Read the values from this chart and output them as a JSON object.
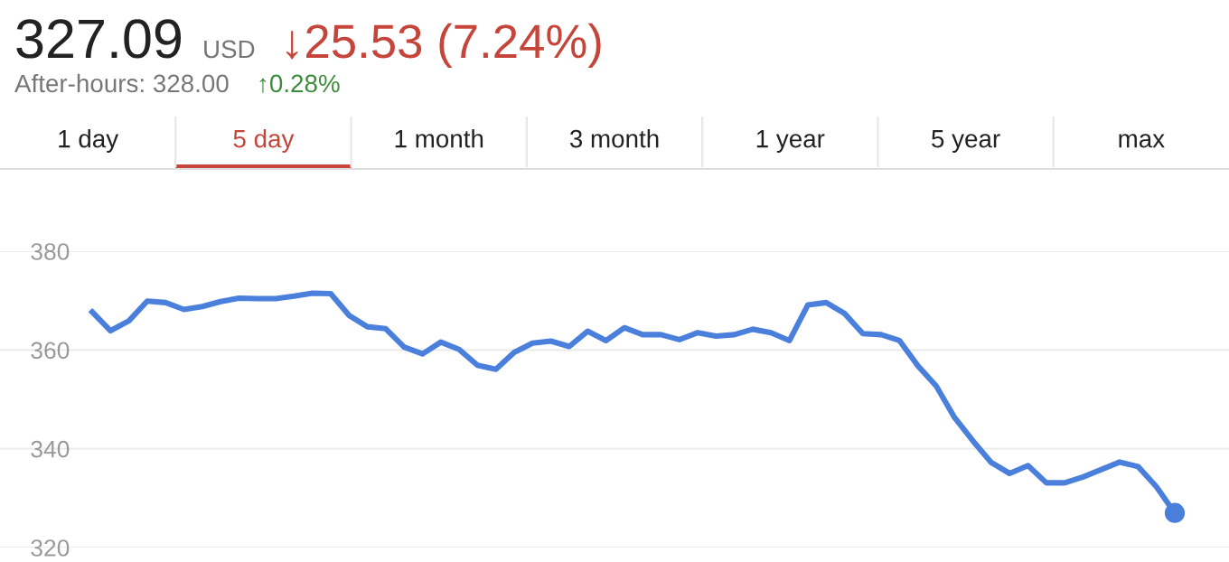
{
  "chart_data": {
    "type": "line",
    "title": "327.09",
    "annotations": [
      "USD",
      "↓25.53 (7.24%)",
      "After-hours: 328.00",
      "↑0.28%",
      "1 day",
      "5 day",
      "1 month",
      "3 month",
      "1 year",
      "5 year",
      "max"
    ],
    "categories": [
      null,
      null,
      null,
      null,
      null,
      null,
      null,
      null,
      null,
      null,
      null,
      null,
      null,
      null,
      null,
      null,
      null,
      null,
      null,
      null,
      null,
      null,
      null,
      null,
      null,
      null,
      null,
      null,
      null,
      null,
      null,
      null,
      null,
      null,
      null,
      null,
      null,
      null,
      null,
      null,
      null,
      null,
      null,
      null,
      null,
      null,
      null,
      null,
      null,
      null,
      null,
      null,
      null,
      null,
      null,
      null,
      null,
      null,
      null,
      null
    ],
    "series": [
      {
        "color": "#4a7fdc",
        "values": [
          367.7,
          363.9,
          365.9,
          369.9,
          369.6,
          368.2,
          368.8,
          369.8,
          370.5,
          370.4,
          370.4,
          370.9,
          371.5,
          371.4,
          367.0,
          364.7,
          364.3,
          360.6,
          359.2,
          361.6,
          360.1,
          356.9,
          356.1,
          359.5,
          361.4,
          361.8,
          360.7,
          363.8,
          361.9,
          364.5,
          363.1,
          363.1,
          362.1,
          363.5,
          362.8,
          363.1,
          364.2,
          363.5,
          361.9,
          369.1,
          369.6,
          367.4,
          363.3,
          363.1,
          361.9,
          356.8,
          352.7,
          346.3,
          341.6,
          337.2,
          335.0,
          336.6,
          333.1,
          333.1,
          334.3,
          335.8,
          337.3,
          336.4,
          332.3,
          327.0
        ]
      }
    ],
    "ylim": [
      320,
      380
    ],
    "yticks": [
      320,
      340,
      360,
      380
    ],
    "grid": "y",
    "legend": false,
    "line_style": "solid"
  }
}
